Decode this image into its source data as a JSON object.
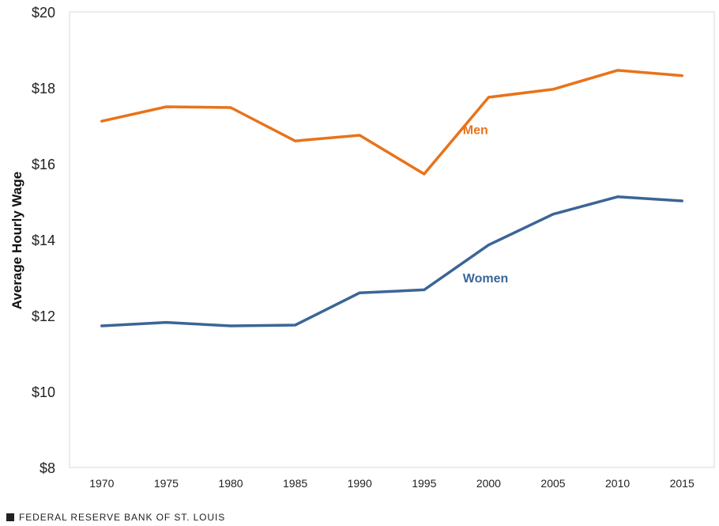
{
  "chart_data": {
    "type": "line",
    "x": [
      1970,
      1975,
      1980,
      1985,
      1990,
      1995,
      2000,
      2005,
      2010,
      2015
    ],
    "x_tick_labels": [
      "1970",
      "1975",
      "1980",
      "1985",
      "1990",
      "1995",
      "2000",
      "2005",
      "2010",
      "2015"
    ],
    "series": [
      {
        "name": "Men",
        "color": "#E8731A",
        "values": [
          17.12,
          17.5,
          17.48,
          16.6,
          16.75,
          15.73,
          17.75,
          17.96,
          18.46,
          18.32
        ]
      },
      {
        "name": "Women",
        "color": "#3B6597",
        "values": [
          11.73,
          11.82,
          11.73,
          11.75,
          12.6,
          12.68,
          13.86,
          14.67,
          15.13,
          15.02
        ]
      }
    ],
    "ylabel": "Average Hourly Wage",
    "ylim": [
      8,
      20
    ],
    "y_ticks": [
      8,
      10,
      12,
      14,
      16,
      18,
      20
    ],
    "y_tick_labels": [
      "$8",
      "$10",
      "$12",
      "$14",
      "$16",
      "$18",
      "$20"
    ],
    "grid": false,
    "legend": "inline labels next to lines"
  },
  "source": {
    "text": "FEDERAL RESERVE BANK OF ST. LOUIS"
  }
}
